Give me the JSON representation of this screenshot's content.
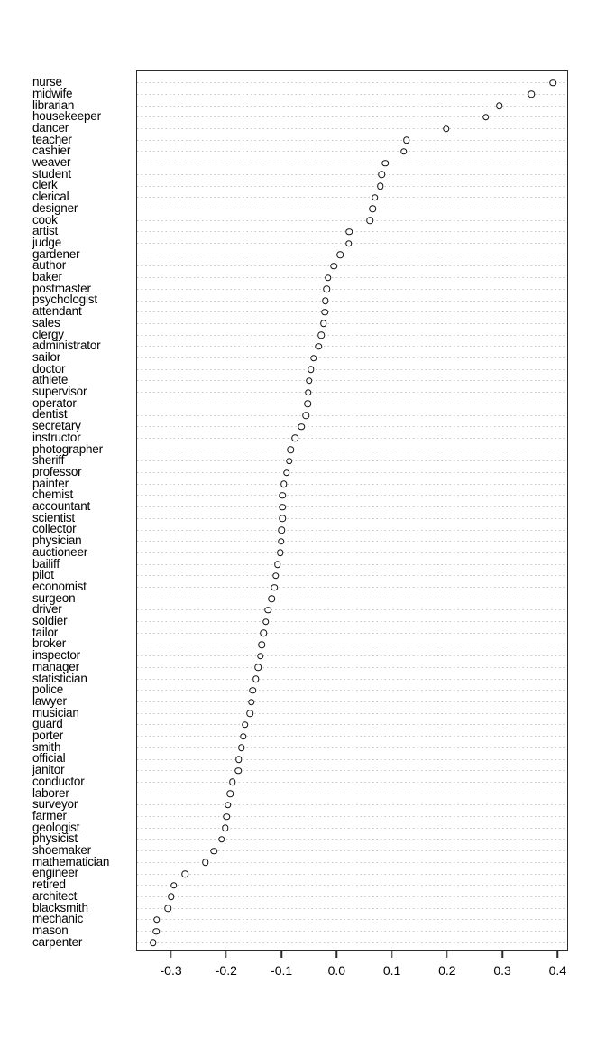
{
  "chart_data": {
    "type": "scatter",
    "subtype": "horizontal-dot-plot",
    "title": "",
    "xlabel": "",
    "ylabel": "",
    "xlim": [
      -0.363,
      0.419
    ],
    "xticks": [
      -0.3,
      -0.2,
      -0.1,
      0.0,
      0.1,
      0.2,
      0.3,
      0.4
    ],
    "xtick_labels": [
      "-0.3",
      "-0.2",
      "-0.1",
      "0.0",
      "0.1",
      "0.2",
      "0.3",
      "0.4"
    ],
    "grid": "dotted horizontal line per category",
    "legend": "none",
    "marker": "open-circle",
    "categories": [
      "nurse",
      "midwife",
      "librarian",
      "housekeeper",
      "dancer",
      "teacher",
      "cashier",
      "weaver",
      "student",
      "clerk",
      "clerical",
      "designer",
      "cook",
      "artist",
      "judge",
      "gardener",
      "author",
      "baker",
      "postmaster",
      "psychologist",
      "attendant",
      "sales",
      "clergy",
      "administrator",
      "sailor",
      "doctor",
      "athlete",
      "supervisor",
      "operator",
      "dentist",
      "secretary",
      "instructor",
      "photographer",
      "sheriff",
      "professor",
      "painter",
      "chemist",
      "accountant",
      "scientist",
      "collector",
      "physician",
      "auctioneer",
      "bailiff",
      "pilot",
      "economist",
      "surgeon",
      "driver",
      "soldier",
      "tailor",
      "broker",
      "inspector",
      "manager",
      "statistician",
      "police",
      "lawyer",
      "musician",
      "guard",
      "porter",
      "smith",
      "official",
      "janitor",
      "conductor",
      "laborer",
      "surveyor",
      "farmer",
      "geologist",
      "physicist",
      "shoemaker",
      "mathematician",
      "engineer",
      "retired",
      "architect",
      "blacksmith",
      "mechanic",
      "mason",
      "carpenter"
    ],
    "values": [
      0.393,
      0.354,
      0.296,
      0.271,
      0.199,
      0.127,
      0.122,
      0.088,
      0.082,
      0.079,
      0.069,
      0.065,
      0.06,
      0.023,
      0.022,
      0.006,
      -0.005,
      -0.016,
      -0.018,
      -0.021,
      -0.022,
      -0.024,
      -0.028,
      -0.033,
      -0.042,
      -0.047,
      -0.05,
      -0.052,
      -0.053,
      -0.056,
      -0.064,
      -0.076,
      -0.084,
      -0.086,
      -0.091,
      -0.096,
      -0.099,
      -0.099,
      -0.099,
      -0.1,
      -0.101,
      -0.103,
      -0.108,
      -0.111,
      -0.113,
      -0.118,
      -0.125,
      -0.129,
      -0.133,
      -0.136,
      -0.139,
      -0.143,
      -0.147,
      -0.153,
      -0.155,
      -0.158,
      -0.167,
      -0.17,
      -0.173,
      -0.178,
      -0.179,
      -0.19,
      -0.194,
      -0.198,
      -0.2,
      -0.203,
      -0.209,
      -0.223,
      -0.239,
      -0.276,
      -0.296,
      -0.301,
      -0.307,
      -0.327,
      -0.328,
      -0.334
    ]
  },
  "colors": {
    "background": "#ffffff",
    "box_border": "#2a2a2a",
    "gridline": "#c6c6c6",
    "dot_stroke": "#111111",
    "dot_fill": "#ffffff",
    "text": "#000000"
  }
}
